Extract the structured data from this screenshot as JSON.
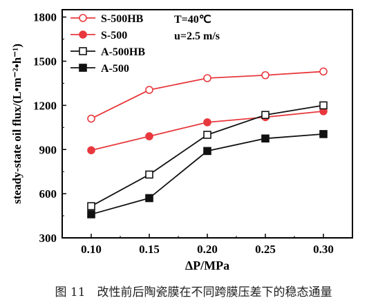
{
  "chart_data": {
    "type": "line",
    "xlabel": "ΔP/MPa",
    "ylabel": "steady-state oil flux/(L•m⁻²•h⁻¹)",
    "x": [
      0.1,
      0.15,
      0.2,
      0.25,
      0.3
    ],
    "x_tick_labels": [
      "0.10",
      "0.15",
      "0.20",
      "0.25",
      "0.30"
    ],
    "xlim": [
      0.075,
      0.325
    ],
    "ylim": [
      300,
      1850
    ],
    "y_ticks": [
      300,
      600,
      900,
      1200,
      1500,
      1800
    ],
    "grid": false,
    "legend_position": "top-left",
    "series": [
      {
        "name": "S-500HB",
        "values": [
          1110,
          1305,
          1385,
          1405,
          1430
        ],
        "color": "#e8383d",
        "marker": "circle-open"
      },
      {
        "name": "S-500",
        "values": [
          895,
          990,
          1085,
          1120,
          1160
        ],
        "color": "#e8383d",
        "marker": "circle-filled"
      },
      {
        "name": "A-500HB",
        "values": [
          515,
          730,
          1000,
          1135,
          1200
        ],
        "color": "#111111",
        "marker": "square-open"
      },
      {
        "name": "A-500",
        "values": [
          460,
          570,
          890,
          975,
          1005
        ],
        "color": "#111111",
        "marker": "square-filled"
      }
    ],
    "annotations": [
      "T=40℃",
      "u=2.5 m/s"
    ]
  },
  "caption": "图 11　改性前后陶瓷膜在不同跨膜压差下的稳态通量"
}
